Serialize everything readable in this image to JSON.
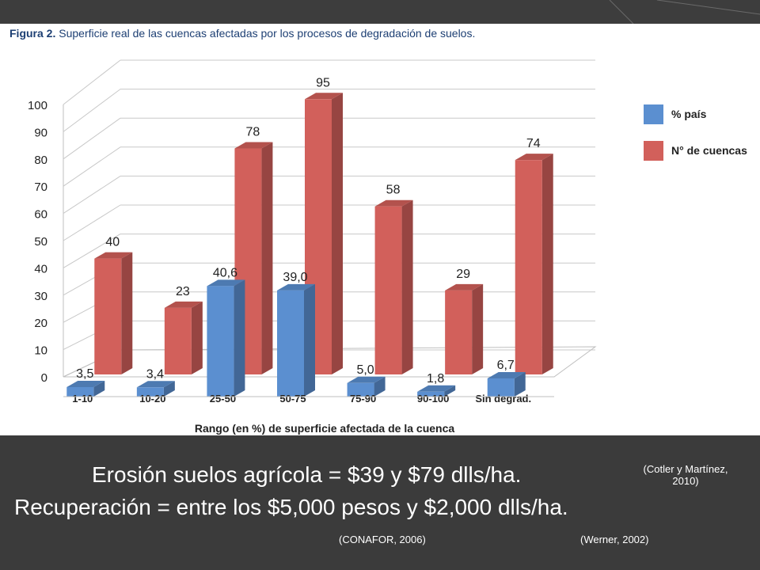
{
  "slide": {
    "line1": "Erosión suelos agrícola = $39 y $79 dlls/ha.",
    "line2": "Recuperación = entre los $5,000 pesos y $2,000 dlls/ha.",
    "cite_cotler_a": "(Cotler y Martínez,",
    "cite_cotler_b": "2010)",
    "cite_conafor": "(CONAFOR, 2006)",
    "cite_werner": "(Werner, 2002)"
  },
  "figure": {
    "title_prefix": "Figura 2.",
    "title_text": " Superficie real de las cuencas afectadas por los procesos de degradación de suelos."
  },
  "chart_data": {
    "type": "bar",
    "categories": [
      "1-10",
      "10-20",
      "25-50",
      "50-75",
      "75-90",
      "90-100",
      "Sin degrad."
    ],
    "xlabel": "Rango (en %) de superficie afectada de la cuenca",
    "ylabel": "",
    "ylim": [
      0,
      100
    ],
    "yticks": [
      "0",
      "10",
      "20",
      "30",
      "40",
      "50",
      "60",
      "70",
      "80",
      "90",
      "100"
    ],
    "legend_position": "right",
    "series": [
      {
        "name": "% país",
        "color": "#5b8fd0",
        "values": [
          3.5,
          3.4,
          40.6,
          39.0,
          5.0,
          1.8,
          6.7
        ],
        "labels": [
          "3,5",
          "3,4",
          "40,6",
          "39,0",
          "5,0",
          "1,8",
          "6,7"
        ]
      },
      {
        "name": "N° de cuencas",
        "color": "#d2605b",
        "values": [
          40,
          23,
          78,
          95,
          58,
          29,
          74
        ],
        "labels": [
          "40",
          "23",
          "78",
          "95",
          "58",
          "29",
          "74"
        ]
      }
    ]
  }
}
